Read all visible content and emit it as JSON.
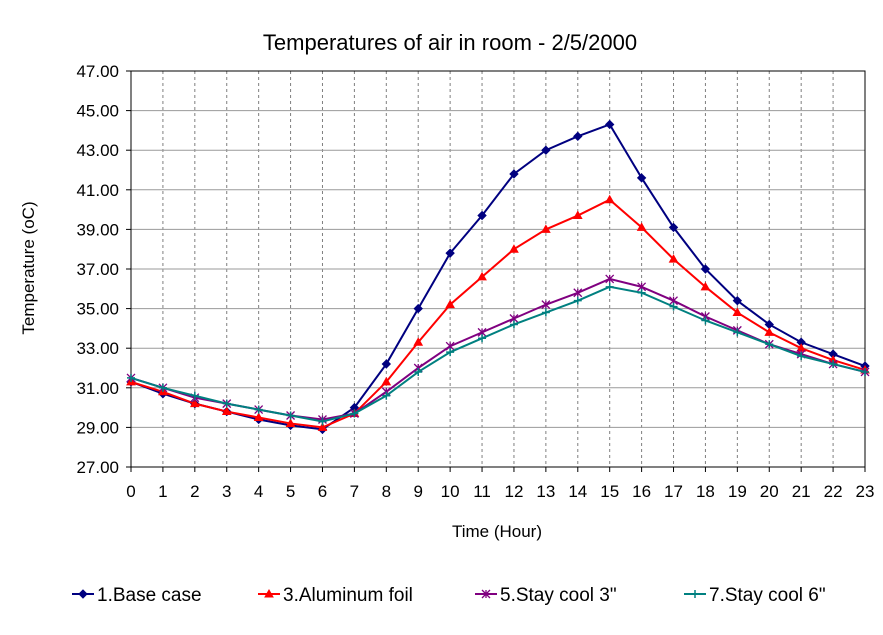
{
  "chart_data": {
    "type": "line",
    "title": "Temperatures of air in room - 2/5/2000",
    "xlabel": "Time (Hour)",
    "ylabel": "Temperature (oC)",
    "ylim": [
      27,
      47
    ],
    "xlim": [
      0,
      23
    ],
    "y_ticks": [
      "27.00",
      "29.00",
      "31.00",
      "33.00",
      "35.00",
      "37.00",
      "39.00",
      "41.00",
      "43.00",
      "45.00",
      "47.00"
    ],
    "x_ticks": [
      "0",
      "1",
      "2",
      "3",
      "4",
      "5",
      "6",
      "7",
      "8",
      "9",
      "10",
      "11",
      "12",
      "13",
      "14",
      "15",
      "16",
      "17",
      "18",
      "19",
      "20",
      "21",
      "22",
      "23"
    ],
    "grid": true,
    "legend_position": "bottom",
    "x": [
      0,
      1,
      2,
      3,
      4,
      5,
      6,
      7,
      8,
      9,
      10,
      11,
      12,
      13,
      14,
      15,
      16,
      17,
      18,
      19,
      20,
      21,
      22,
      23
    ],
    "series": [
      {
        "name": "1.Base case",
        "color": "#000080",
        "marker": "diamond",
        "values": [
          31.3,
          30.7,
          30.2,
          29.8,
          29.4,
          29.1,
          28.9,
          30.0,
          32.2,
          35.0,
          37.8,
          39.7,
          41.8,
          43.0,
          43.7,
          44.3,
          41.6,
          39.1,
          37.0,
          35.4,
          34.2,
          33.3,
          32.7,
          32.1
        ]
      },
      {
        "name": "3.Aluminum foil",
        "color": "#ff0000",
        "marker": "triangle",
        "values": [
          31.3,
          30.8,
          30.2,
          29.8,
          29.5,
          29.2,
          29.0,
          29.7,
          31.3,
          33.3,
          35.2,
          36.6,
          38.0,
          39.0,
          39.7,
          40.5,
          39.1,
          37.5,
          36.1,
          34.8,
          33.8,
          33.0,
          32.4,
          31.9
        ]
      },
      {
        "name": "5.Stay cool 3\"",
        "color": "#800080",
        "marker": "star",
        "values": [
          31.5,
          31.0,
          30.5,
          30.2,
          29.9,
          29.6,
          29.4,
          29.7,
          30.8,
          32.0,
          33.1,
          33.8,
          34.5,
          35.2,
          35.8,
          36.5,
          36.1,
          35.4,
          34.6,
          33.9,
          33.2,
          32.7,
          32.2,
          31.8
        ]
      },
      {
        "name": "7.Stay cool 6\"",
        "color": "#008080",
        "marker": "plus",
        "values": [
          31.5,
          31.0,
          30.6,
          30.2,
          29.9,
          29.6,
          29.3,
          29.7,
          30.6,
          31.8,
          32.8,
          33.5,
          34.2,
          34.8,
          35.4,
          36.1,
          35.8,
          35.1,
          34.4,
          33.8,
          33.2,
          32.6,
          32.2,
          31.8
        ]
      }
    ]
  }
}
